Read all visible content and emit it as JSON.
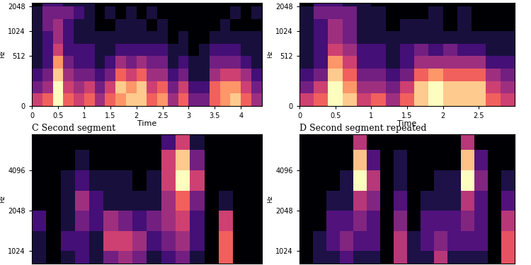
{
  "chart_data": [
    {
      "type": "heatmap",
      "ylabel": "Hz",
      "xlabel": "Time",
      "log": "y",
      "xlim": [
        0,
        4.4
      ],
      "ylim": [
        0,
        2270
      ],
      "xticks": [
        0,
        0.5,
        1,
        1.5,
        2,
        2.5,
        3,
        3.5,
        4
      ],
      "yticks": [
        0,
        512,
        1024,
        2048
      ],
      "time_bins": [
        0,
        0.2,
        0.4,
        0.6,
        0.8,
        1.0,
        1.2,
        1.4,
        1.6,
        1.8,
        2.0,
        2.2,
        2.4,
        2.6,
        2.8,
        3.0,
        3.2,
        3.4,
        3.6,
        3.8,
        4.0,
        4.2,
        4.4
      ],
      "freq_bins": [
        0,
        128,
        256,
        384,
        512,
        724,
        1024,
        1448,
        2048,
        2270
      ],
      "cells": [
        [
          0.5,
          0.6,
          0.9,
          0.6,
          0.5,
          0.6,
          0.4,
          0.6,
          0.7,
          0.8,
          0.8,
          0.6,
          0.7,
          0.4,
          0.6,
          0.3,
          0.3,
          0.6,
          0.7,
          0.8,
          0.6,
          0.4
        ],
        [
          0.3,
          0.4,
          0.9,
          0.5,
          0.4,
          0.5,
          0.3,
          0.5,
          0.8,
          0.7,
          0.8,
          0.5,
          0.6,
          0.3,
          0.5,
          0.2,
          0.2,
          0.6,
          0.7,
          0.7,
          0.5,
          0.3
        ],
        [
          0.2,
          0.3,
          0.8,
          0.4,
          0.3,
          0.3,
          0.2,
          0.3,
          0.6,
          0.5,
          0.6,
          0.4,
          0.4,
          0.2,
          0.3,
          0.1,
          0.1,
          0.4,
          0.5,
          0.5,
          0.4,
          0.2
        ],
        [
          0.1,
          0.2,
          0.7,
          0.3,
          0.2,
          0.2,
          0.1,
          0.2,
          0.4,
          0.3,
          0.4,
          0.3,
          0.3,
          0.1,
          0.2,
          0.1,
          0.1,
          0.3,
          0.3,
          0.3,
          0.2,
          0.1
        ],
        [
          0.1,
          0.2,
          0.5,
          0.2,
          0.2,
          0.2,
          0.1,
          0.1,
          0.2,
          0.2,
          0.2,
          0.2,
          0.2,
          0.1,
          0.1,
          0.0,
          0.1,
          0.2,
          0.2,
          0.2,
          0.1,
          0.1
        ],
        [
          0.1,
          0.2,
          0.4,
          0.2,
          0.1,
          0.1,
          0.1,
          0.1,
          0.1,
          0.1,
          0.1,
          0.1,
          0.1,
          0.0,
          0.1,
          0.0,
          0.0,
          0.1,
          0.1,
          0.1,
          0.1,
          0.1
        ],
        [
          0.1,
          0.3,
          0.4,
          0.2,
          0.1,
          0.1,
          0.0,
          0.0,
          0.1,
          0.1,
          0.1,
          0.0,
          0.1,
          0.0,
          0.0,
          0.0,
          0.0,
          0.0,
          0.1,
          0.0,
          0.0,
          0.0
        ],
        [
          0.1,
          0.3,
          0.3,
          0.3,
          0.2,
          0.1,
          0.0,
          0.1,
          0.0,
          0.1,
          0.0,
          0.1,
          0.0,
          0.0,
          0.0,
          0.0,
          0.0,
          0.0,
          0.0,
          0.1,
          0.0,
          0.1
        ],
        [
          0.0,
          0.2,
          0.2,
          0.1,
          0.1,
          0.1,
          0.0,
          0.0,
          0.0,
          0.0,
          0.0,
          0.0,
          0.0,
          0.0,
          0.0,
          0.0,
          0.0,
          0.0,
          0.0,
          0.0,
          0.0,
          0.0
        ]
      ]
    },
    {
      "type": "heatmap",
      "ylabel": "Hz",
      "xlabel": "Time",
      "log": "y",
      "xlim": [
        0,
        3.0
      ],
      "ylim": [
        0,
        2270
      ],
      "xticks": [
        0,
        0.5,
        1,
        1.5,
        2,
        2.5
      ],
      "yticks": [
        0,
        512,
        1024,
        2048
      ],
      "time_bins": [
        0,
        0.2,
        0.4,
        0.6,
        0.8,
        1.0,
        1.2,
        1.4,
        1.6,
        1.8,
        2.0,
        2.2,
        2.4,
        2.6,
        2.8,
        3.0
      ],
      "freq_bins": [
        0,
        128,
        256,
        384,
        512,
        724,
        1024,
        1448,
        2048,
        2270
      ],
      "cells": [
        [
          0.5,
          0.6,
          0.9,
          0.8,
          0.5,
          0.6,
          0.4,
          0.6,
          0.8,
          0.9,
          0.8,
          0.8,
          0.8,
          0.6,
          0.5
        ],
        [
          0.3,
          0.5,
          0.9,
          0.7,
          0.4,
          0.4,
          0.3,
          0.5,
          0.8,
          0.9,
          0.8,
          0.8,
          0.8,
          0.5,
          0.4
        ],
        [
          0.2,
          0.3,
          0.8,
          0.6,
          0.3,
          0.3,
          0.2,
          0.3,
          0.6,
          0.7,
          0.6,
          0.6,
          0.6,
          0.4,
          0.3
        ],
        [
          0.1,
          0.2,
          0.7,
          0.5,
          0.2,
          0.2,
          0.1,
          0.2,
          0.4,
          0.4,
          0.4,
          0.4,
          0.4,
          0.2,
          0.2
        ],
        [
          0.1,
          0.2,
          0.5,
          0.4,
          0.2,
          0.2,
          0.1,
          0.2,
          0.3,
          0.2,
          0.3,
          0.2,
          0.2,
          0.1,
          0.1
        ],
        [
          0.1,
          0.2,
          0.4,
          0.3,
          0.1,
          0.1,
          0.1,
          0.1,
          0.1,
          0.1,
          0.1,
          0.1,
          0.1,
          0.1,
          0.1
        ],
        [
          0.1,
          0.2,
          0.4,
          0.3,
          0.1,
          0.1,
          0.0,
          0.1,
          0.1,
          0.1,
          0.0,
          0.1,
          0.0,
          0.0,
          0.0
        ],
        [
          0.1,
          0.3,
          0.3,
          0.3,
          0.1,
          0.1,
          0.0,
          0.0,
          0.0,
          0.1,
          0.0,
          0.1,
          0.0,
          0.0,
          0.0
        ],
        [
          0.0,
          0.2,
          0.2,
          0.1,
          0.1,
          0.0,
          0.0,
          0.0,
          0.0,
          0.0,
          0.0,
          0.0,
          0.0,
          0.0,
          0.0
        ]
      ]
    },
    {
      "type": "heatmap",
      "title": "C Second segment",
      "ylabel": "Hz",
      "log": "y",
      "tick_labels": "y",
      "xlim": [
        0,
        4.4
      ],
      "ylim": [
        825,
        7600
      ],
      "yticks": [
        1024,
        2048,
        4096
      ],
      "time_bins": [
        0,
        0.275,
        0.55,
        0.825,
        1.1,
        1.375,
        1.65,
        1.925,
        2.2,
        2.475,
        2.75,
        3.025,
        3.3,
        3.575,
        3.85,
        4.125,
        4.4
      ],
      "freq_bins": [
        825,
        1024,
        1448,
        2048,
        2896,
        4096,
        5793,
        7600
      ],
      "cells": [
        [
          0.1,
          0.0,
          0.1,
          0.2,
          0.1,
          0.3,
          0.4,
          0.3,
          0.1,
          0.2,
          0.3,
          0.1,
          0.0,
          0.6,
          0.0,
          0.0
        ],
        [
          0.1,
          0.0,
          0.2,
          0.2,
          0.1,
          0.5,
          0.5,
          0.4,
          0.2,
          0.3,
          0.4,
          0.2,
          0.0,
          0.6,
          0.0,
          0.0
        ],
        [
          0.2,
          0.0,
          0.1,
          0.3,
          0.2,
          0.4,
          0.3,
          0.2,
          0.3,
          0.4,
          0.5,
          0.2,
          0.0,
          0.5,
          0.0,
          0.0
        ],
        [
          0.0,
          0.0,
          0.1,
          0.4,
          0.2,
          0.1,
          0.1,
          0.1,
          0.1,
          0.4,
          0.6,
          0.3,
          0.0,
          0.1,
          0.0,
          0.0
        ],
        [
          0.0,
          0.0,
          0.1,
          0.2,
          0.1,
          0.1,
          0.1,
          0.0,
          0.1,
          0.5,
          0.9,
          0.5,
          0.0,
          0.0,
          0.0,
          0.0
        ],
        [
          0.0,
          0.0,
          0.0,
          0.1,
          0.0,
          0.0,
          0.0,
          0.0,
          0.0,
          0.5,
          0.8,
          0.3,
          0.0,
          0.0,
          0.0,
          0.0
        ],
        [
          0.0,
          0.0,
          0.0,
          0.0,
          0.0,
          0.0,
          0.0,
          0.0,
          0.0,
          0.2,
          0.5,
          0.1,
          0.0,
          0.0,
          0.0,
          0.0
        ]
      ]
    },
    {
      "type": "heatmap",
      "title": "D Second segment repeated",
      "ylabel": "Hz",
      "log": "y",
      "tick_labels": "y",
      "xlim": [
        0,
        3.0
      ],
      "ylim": [
        825,
        7600
      ],
      "yticks": [
        1024,
        2048,
        4096
      ],
      "time_bins": [
        0,
        0.1875,
        0.375,
        0.5625,
        0.75,
        0.9375,
        1.125,
        1.3125,
        1.5,
        1.6875,
        1.875,
        2.0625,
        2.25,
        2.4375,
        2.625,
        2.8125,
        3.0
      ],
      "freq_bins": [
        825,
        1024,
        1448,
        2048,
        2896,
        4096,
        5793,
        7600
      ],
      "cells": [
        [
          0.0,
          0.1,
          0.1,
          0.2,
          0.1,
          0.1,
          0.0,
          0.4,
          0.1,
          0.1,
          0.4,
          0.1,
          0.1,
          0.1,
          0.0,
          0.5
        ],
        [
          0.0,
          0.1,
          0.2,
          0.3,
          0.2,
          0.2,
          0.0,
          0.4,
          0.1,
          0.2,
          0.3,
          0.2,
          0.2,
          0.2,
          0.0,
          0.5
        ],
        [
          0.0,
          0.0,
          0.2,
          0.2,
          0.3,
          0.2,
          0.0,
          0.3,
          0.0,
          0.2,
          0.2,
          0.2,
          0.3,
          0.2,
          0.0,
          0.4
        ],
        [
          0.0,
          0.0,
          0.1,
          0.1,
          0.4,
          0.3,
          0.0,
          0.2,
          0.0,
          0.1,
          0.1,
          0.1,
          0.4,
          0.2,
          0.0,
          0.2
        ],
        [
          0.0,
          0.0,
          0.0,
          0.1,
          0.8,
          0.4,
          0.0,
          0.1,
          0.0,
          0.0,
          0.1,
          0.1,
          0.8,
          0.3,
          0.0,
          0.1
        ],
        [
          0.0,
          0.0,
          0.0,
          0.0,
          0.7,
          0.2,
          0.0,
          0.1,
          0.0,
          0.0,
          0.0,
          0.0,
          0.7,
          0.2,
          0.0,
          0.0
        ],
        [
          0.0,
          0.0,
          0.0,
          0.0,
          0.4,
          0.0,
          0.0,
          0.0,
          0.0,
          0.0,
          0.0,
          0.0,
          0.4,
          0.0,
          0.0,
          0.0
        ]
      ]
    }
  ]
}
